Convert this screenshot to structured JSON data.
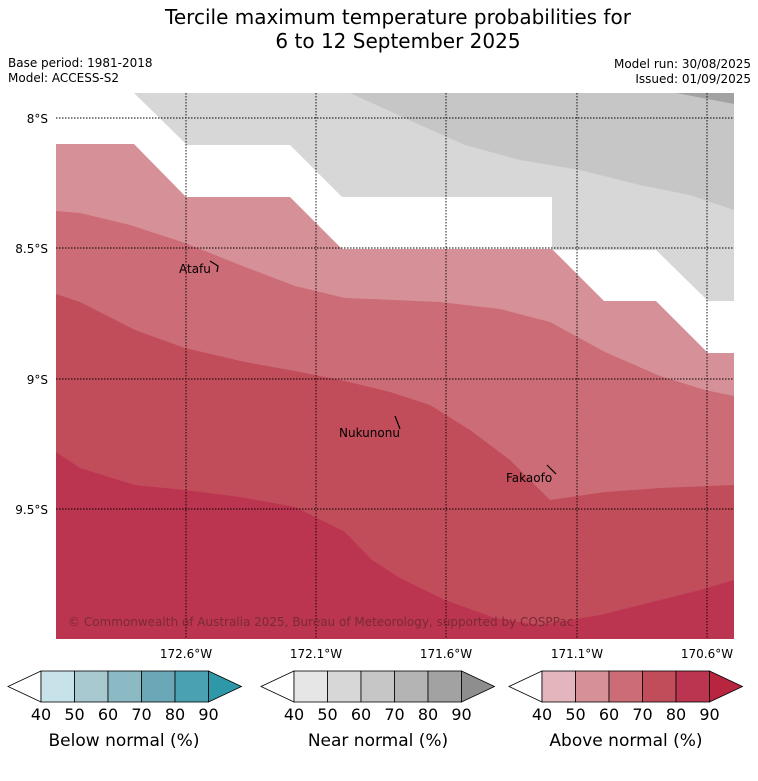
{
  "title": {
    "line1": "Tercile maximum temperature probabilities for",
    "line2": "6 to 12 September 2025"
  },
  "info": {
    "base_period": "Base period: 1981-2018",
    "model": "Model: ACCESS-S2",
    "model_run": "Model run: 30/08/2025",
    "issued": "Issued: 01/09/2025"
  },
  "map": {
    "lat_labels": [
      "8°S",
      "8.5°S",
      "9°S",
      "9.5°S"
    ],
    "lon_labels": [
      "172.6°W",
      "172.1°W",
      "171.6°W",
      "171.1°W",
      "170.6°W"
    ],
    "places": [
      "Atafu",
      "Nukunonu",
      "Fakaofo"
    ],
    "copyright": "© Commonwealth of Australia 2025, Bureau of Meteorology, supported by COSPPac"
  },
  "legends": [
    {
      "label": "Below normal (%)",
      "ticks": [
        "40",
        "50",
        "60",
        "70",
        "80",
        "90"
      ],
      "colors": [
        "#ffffff",
        "#c7e2e8",
        "#a8c9cf",
        "#8bbac4",
        "#6aa8b7",
        "#4aa1b2",
        "#2e98a8"
      ]
    },
    {
      "label": "Near normal (%)",
      "ticks": [
        "40",
        "50",
        "60",
        "70",
        "80",
        "90"
      ],
      "colors": [
        "#ffffff",
        "#e6e6e6",
        "#d7d7d7",
        "#c6c6c6",
        "#b4b4b4",
        "#a2a2a2",
        "#8e8e8e"
      ]
    },
    {
      "label": "Above normal (%)",
      "ticks": [
        "40",
        "50",
        "60",
        "70",
        "80",
        "90"
      ],
      "colors": [
        "#ffffff",
        "#e2b6bc",
        "#d69198",
        "#cc6c76",
        "#c24d5a",
        "#bc3550",
        "#b8253f"
      ]
    }
  ]
}
